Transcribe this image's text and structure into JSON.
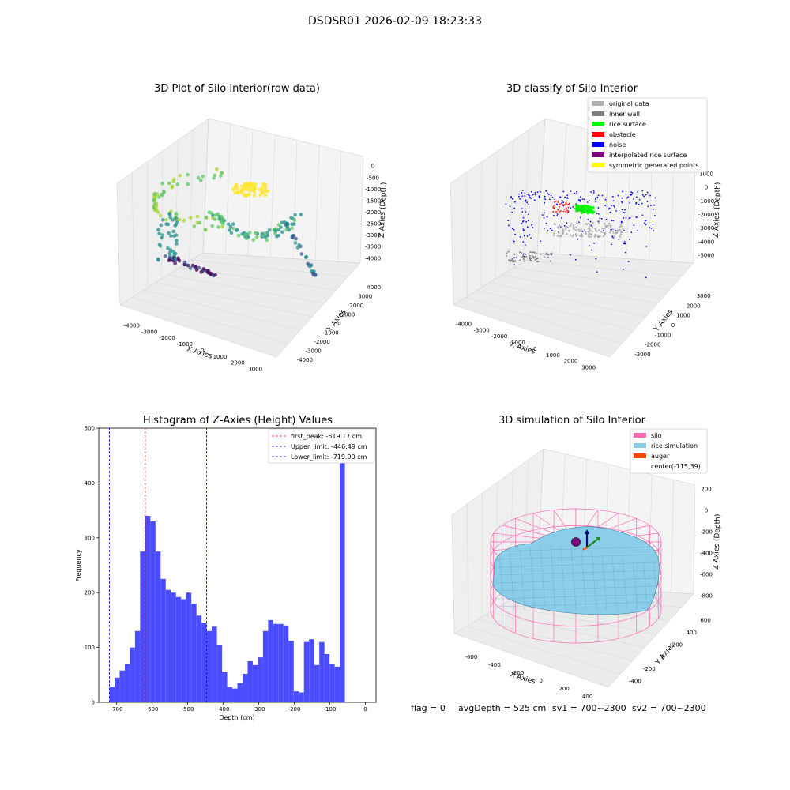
{
  "suptitle": "DSDSR01 2026-02-09 18:23:33",
  "footer": {
    "flag": "flag = 0",
    "avg": "avgDepth = 525 cm",
    "sv1": "sv1 = 700~2300",
    "sv2": "sv2 = 700~2300"
  },
  "colors": {
    "hist_bar": "#4c4cff",
    "first_peak": "#ff0000",
    "limits": "#0000cc",
    "pane": "#f2f2f2",
    "silo": "#ff69b4",
    "rice_sim": "#87ceeb",
    "auger": "#ff4500"
  },
  "chart_data": [
    {
      "type": "scatter",
      "projection": "3d",
      "title": "3D Plot of Silo Interior(row data)",
      "xlabel": "X Axies",
      "ylabel": "Y Axies",
      "zlabel": "Z Axies (Depth)",
      "xticks": [
        "-4000",
        "-3000",
        "-2000",
        "-1000",
        "0",
        "1000",
        "2000",
        "3000"
      ],
      "yticks": [
        "-4000",
        "-3000",
        "-2000",
        "-1000",
        "0",
        "1000",
        "2000",
        "3000",
        "4000"
      ],
      "zticks": [
        "0",
        "-500",
        "-1000",
        "-1500",
        "-2000",
        "-2500",
        "-3000",
        "-3500",
        "-4000"
      ],
      "colormap": "viridis by depth",
      "grid": true
    },
    {
      "type": "scatter",
      "projection": "3d",
      "title": "3D classify of Silo Interior",
      "xlabel": "X Axies",
      "ylabel": "Y Axies",
      "zlabel": "Z Axies (Depth)",
      "xticks": [
        "-4000",
        "-3000",
        "-2000",
        "-1000",
        "0",
        "1000",
        "2000",
        "3000"
      ],
      "yticks": [
        "-3000",
        "-2000",
        "-1000",
        "0",
        "1000",
        "2000",
        "3000"
      ],
      "zticks": [
        "1000",
        "0",
        "-1000",
        "-2000",
        "-3000",
        "-4000",
        "-5000"
      ],
      "legend_position": "top-right",
      "legend": [
        {
          "label": "original data",
          "color": "#b0b0b0"
        },
        {
          "label": "inner wall",
          "color": "#808080"
        },
        {
          "label": "rice surface",
          "color": "#00ff00"
        },
        {
          "label": "obstacle",
          "color": "#ff0000"
        },
        {
          "label": "noise",
          "color": "#0000ff"
        },
        {
          "label": "interpolated rice surface",
          "color": "#800080"
        },
        {
          "label": "symmetric generated points",
          "color": "#ffff00"
        }
      ],
      "grid": true
    },
    {
      "type": "bar",
      "title": "Histogram of Z-Axies (Height) Values",
      "xlabel": "Depth (cm)",
      "ylabel": "Frequency",
      "xlim": [
        -750,
        30
      ],
      "ylim": [
        0,
        500
      ],
      "xticks": [
        -700,
        -600,
        -500,
        -400,
        -300,
        -200,
        -100,
        0
      ],
      "yticks": [
        0,
        100,
        200,
        300,
        400,
        500
      ],
      "bin_start": -720,
      "bin_width": 14.4,
      "values": [
        28,
        45,
        58,
        70,
        100,
        130,
        275,
        340,
        330,
        275,
        225,
        205,
        200,
        192,
        188,
        200,
        180,
        158,
        145,
        130,
        138,
        105,
        55,
        28,
        25,
        35,
        52,
        75,
        68,
        82,
        130,
        150,
        143,
        143,
        140,
        112,
        20,
        18,
        110,
        115,
        68,
        110,
        88,
        70,
        65,
        480
      ],
      "lines": [
        {
          "label": "first_peak: -619.17 cm",
          "x": -619.17,
          "color": "#ff0000"
        },
        {
          "label": "Upper_limit: -446.49 cm",
          "x": -446.49,
          "color": "#0000cc"
        },
        {
          "label": "Lower_limit: -719.90 cm",
          "x": -719.9,
          "color": "#0000cc"
        }
      ],
      "legend_position": "top-right",
      "grid": false
    },
    {
      "type": "surface",
      "projection": "3d",
      "title": "3D simulation of Silo Interior",
      "xlabel": "X Axies",
      "ylabel": "Y Axies",
      "zlabel": "Z Axies (Depth)",
      "xticks": [
        "-600",
        "-400",
        "-200",
        "0",
        "200",
        "400"
      ],
      "yticks": [
        "-400",
        "-200",
        "0",
        "200",
        "400",
        "600"
      ],
      "zticks": [
        "200",
        "0",
        "-200",
        "-400",
        "-600",
        "-800"
      ],
      "legend_position": "top-right",
      "legend": [
        {
          "label": "silo",
          "color": "#ff69b4"
        },
        {
          "label": "rice simulation",
          "color": "#87ceeb"
        },
        {
          "label": "auger",
          "color": "#ff4500"
        },
        {
          "label": "center(-115,39)",
          "color": ""
        }
      ],
      "grid": true
    }
  ]
}
